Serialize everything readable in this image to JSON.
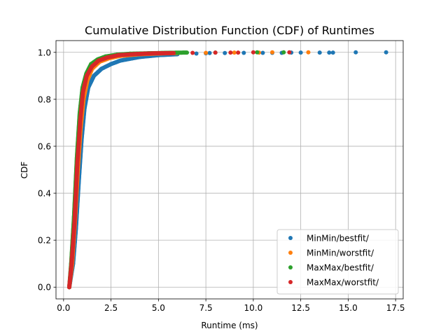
{
  "chart_data": {
    "type": "scatter",
    "title": "Cumulative Distribution Function (CDF) of Runtimes",
    "xlabel": "Runtime (ms)",
    "ylabel": "CDF",
    "xlim": [
      -0.4,
      17.9
    ],
    "ylim": [
      -0.05,
      1.05
    ],
    "grid": true,
    "legend_position": "lower-right",
    "xticks": [
      {
        "value": 0.0,
        "label": "0.0"
      },
      {
        "value": 2.5,
        "label": "2.5"
      },
      {
        "value": 5.0,
        "label": "5.0"
      },
      {
        "value": 7.5,
        "label": "7.5"
      },
      {
        "value": 10.0,
        "label": "10.0"
      },
      {
        "value": 12.5,
        "label": "12.5"
      },
      {
        "value": 15.0,
        "label": "15.0"
      },
      {
        "value": 17.5,
        "label": "17.5"
      }
    ],
    "yticks": [
      {
        "value": 0.0,
        "label": "0.0"
      },
      {
        "value": 0.2,
        "label": "0.2"
      },
      {
        "value": 0.4,
        "label": "0.4"
      },
      {
        "value": 0.6,
        "label": "0.6"
      },
      {
        "value": 0.8,
        "label": "0.8"
      },
      {
        "value": 1.0,
        "label": "1.0"
      }
    ],
    "series": [
      {
        "name": "MinMin/bestfit/",
        "color": "#1f77b4",
        "x": [
          0.3,
          0.5,
          0.65,
          0.8,
          0.95,
          1.1,
          1.3,
          1.6,
          2.0,
          2.5,
          3.0,
          4.0,
          5.0,
          6.0,
          7.0,
          7.5,
          7.7,
          8.5,
          9.5,
          10.5,
          11.0,
          11.5,
          12.0,
          12.5,
          13.5,
          14.0,
          14.2,
          15.4,
          17.0
        ],
        "y": [
          0.0,
          0.1,
          0.25,
          0.45,
          0.63,
          0.76,
          0.85,
          0.9,
          0.93,
          0.95,
          0.965,
          0.98,
          0.988,
          0.992,
          0.995,
          0.996,
          0.997,
          0.997,
          0.998,
          0.998,
          0.998,
          0.998,
          0.999,
          0.999,
          0.999,
          0.999,
          0.999,
          1.0,
          1.0
        ]
      },
      {
        "name": "MinMin/worstfit/",
        "color": "#ff7f0e",
        "x": [
          0.3,
          0.45,
          0.6,
          0.75,
          0.9,
          1.05,
          1.25,
          1.5,
          1.9,
          2.4,
          3.0,
          4.0,
          5.0,
          6.0,
          7.5,
          9.0,
          10.3,
          11.0,
          12.9
        ],
        "y": [
          0.0,
          0.1,
          0.28,
          0.5,
          0.68,
          0.8,
          0.88,
          0.93,
          0.96,
          0.975,
          0.985,
          0.992,
          0.995,
          0.997,
          0.998,
          0.999,
          0.999,
          1.0,
          1.0
        ]
      },
      {
        "name": "MaxMax/bestfit/",
        "color": "#2ca02c",
        "x": [
          0.3,
          0.4,
          0.55,
          0.7,
          0.85,
          1.0,
          1.2,
          1.45,
          1.8,
          2.2,
          2.8,
          3.5,
          4.5,
          5.5,
          6.5,
          8.0,
          10.2,
          11.6
        ],
        "y": [
          0.0,
          0.1,
          0.3,
          0.55,
          0.74,
          0.85,
          0.91,
          0.95,
          0.97,
          0.982,
          0.99,
          0.994,
          0.996,
          0.998,
          0.999,
          0.999,
          1.0,
          1.0
        ]
      },
      {
        "name": "MaxMax/worstfit/",
        "color": "#d62728",
        "x": [
          0.3,
          0.42,
          0.58,
          0.72,
          0.88,
          1.02,
          1.22,
          1.5,
          1.85,
          2.3,
          2.9,
          3.8,
          4.8,
          5.8,
          6.8,
          8.0,
          8.8,
          9.2,
          10.0,
          11.9
        ],
        "y": [
          0.0,
          0.1,
          0.28,
          0.52,
          0.71,
          0.83,
          0.9,
          0.94,
          0.965,
          0.978,
          0.988,
          0.993,
          0.996,
          0.997,
          0.998,
          0.999,
          0.999,
          0.999,
          1.0,
          1.0
        ]
      }
    ]
  }
}
